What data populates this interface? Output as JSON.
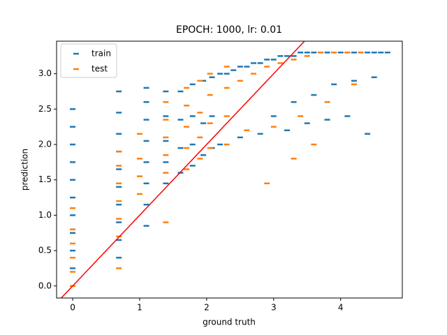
{
  "chart_data": {
    "type": "scatter",
    "title": "EPOCH: 1000, lr: 0.01",
    "x_label": "ground truth",
    "y_label": "prediction",
    "xlim": [
      -0.24,
      4.92
    ],
    "ylim": [
      -0.17,
      3.46
    ],
    "xticks": [
      0,
      1,
      2,
      3,
      4
    ],
    "yticks": [
      {
        "value": 0,
        "label": "0.0"
      },
      {
        "value": 0.5,
        "label": "0.5"
      },
      {
        "value": 1,
        "label": "1.0"
      },
      {
        "value": 1.5,
        "label": "1.5"
      },
      {
        "value": 2,
        "label": "2.0"
      },
      {
        "value": 2.5,
        "label": "2.5"
      },
      {
        "value": 3,
        "label": "3.0"
      }
    ],
    "legend": "upper left",
    "reference_line": {
      "slope": 1,
      "intercept": 0,
      "color": "#ff0000"
    },
    "series": [
      {
        "name": "train",
        "color": "#1f77b4",
        "x": [
          0,
          0,
          0,
          0,
          0,
          0,
          0,
          0,
          0,
          0,
          0,
          0.69,
          0.69,
          0.69,
          0.69,
          0.69,
          0.69,
          0.69,
          0.69,
          0.69,
          0.69,
          1.1,
          1.1,
          1.1,
          1.1,
          1.1,
          1.1,
          1.1,
          1.1,
          1.39,
          1.39,
          1.39,
          1.39,
          1.39,
          1.61,
          1.61,
          1.61,
          1.61,
          1.79,
          1.79,
          1.79,
          1.79,
          1.95,
          1.95,
          1.95,
          2.08,
          2.08,
          2.08,
          2.2,
          2.2,
          2.3,
          2.4,
          2.5,
          2.6,
          2.7,
          2.8,
          2.9,
          3.0,
          3.1,
          3.2,
          3.3,
          3.4,
          3.5,
          3.6,
          3.7,
          3.8,
          3.9,
          4.0,
          4.1,
          4.2,
          4.3,
          4.4,
          4.5,
          4.6,
          4.7,
          3.0,
          3.3,
          3.6,
          3.9,
          4.2,
          4.5,
          2.5,
          2.8,
          3.2,
          3.5,
          3.8,
          4.1,
          4.4
        ],
        "values": [
          0,
          0.25,
          0.5,
          0.75,
          1.0,
          1.25,
          1.5,
          1.75,
          2.0,
          2.25,
          2.5,
          0.4,
          0.65,
          0.9,
          1.15,
          1.4,
          1.65,
          1.9,
          2.15,
          2.45,
          2.75,
          0.85,
          1.15,
          1.45,
          1.75,
          2.05,
          2.35,
          2.6,
          2.8,
          1.45,
          1.75,
          2.05,
          2.4,
          2.75,
          1.6,
          1.95,
          2.35,
          2.75,
          1.7,
          2.0,
          2.4,
          2.85,
          1.85,
          2.3,
          2.9,
          1.95,
          2.4,
          2.95,
          2.0,
          3.0,
          3.0,
          3.05,
          3.1,
          3.1,
          3.15,
          3.15,
          3.2,
          3.2,
          3.25,
          3.25,
          3.25,
          3.3,
          3.3,
          3.3,
          3.3,
          3.3,
          3.3,
          3.3,
          3.3,
          3.3,
          3.3,
          3.3,
          3.3,
          3.3,
          3.3,
          2.4,
          2.6,
          2.7,
          2.85,
          2.9,
          2.95,
          2.1,
          2.15,
          2.2,
          2.3,
          2.35,
          2.4,
          2.15
        ]
      },
      {
        "name": "test",
        "color": "#ff7f0e",
        "x": [
          0,
          0,
          0,
          0,
          0,
          0,
          0.69,
          0.69,
          0.69,
          0.69,
          0.69,
          0.69,
          0.69,
          1.0,
          1.0,
          1.0,
          1.0,
          1.39,
          1.39,
          1.39,
          1.39,
          1.39,
          1.39,
          1.7,
          1.7,
          1.7,
          1.7,
          1.7,
          1.9,
          1.9,
          1.9,
          1.9,
          2.05,
          2.05,
          2.05,
          2.05,
          2.3,
          2.3,
          2.3,
          2.3,
          2.5,
          2.7,
          2.9,
          3.1,
          3.3,
          3.5,
          3.7,
          3.9,
          4.1,
          4.3,
          2.6,
          3.0,
          3.4,
          3.8,
          4.2,
          2.9,
          3.3,
          3.6
        ],
        "values": [
          0,
          0.2,
          0.4,
          0.6,
          0.8,
          1.1,
          0.25,
          0.7,
          0.95,
          1.2,
          1.45,
          1.7,
          1.9,
          1.3,
          1.55,
          1.8,
          2.15,
          0.9,
          1.6,
          1.85,
          2.1,
          2.35,
          2.6,
          1.65,
          1.95,
          2.25,
          2.55,
          2.8,
          1.8,
          2.1,
          2.45,
          2.9,
          1.95,
          2.3,
          2.7,
          3.0,
          2.0,
          2.4,
          2.8,
          3.1,
          2.9,
          3.0,
          3.1,
          3.15,
          3.2,
          3.25,
          3.3,
          3.3,
          3.3,
          3.3,
          2.2,
          2.25,
          2.4,
          2.6,
          2.85,
          1.45,
          1.8,
          2.0
        ]
      }
    ]
  }
}
